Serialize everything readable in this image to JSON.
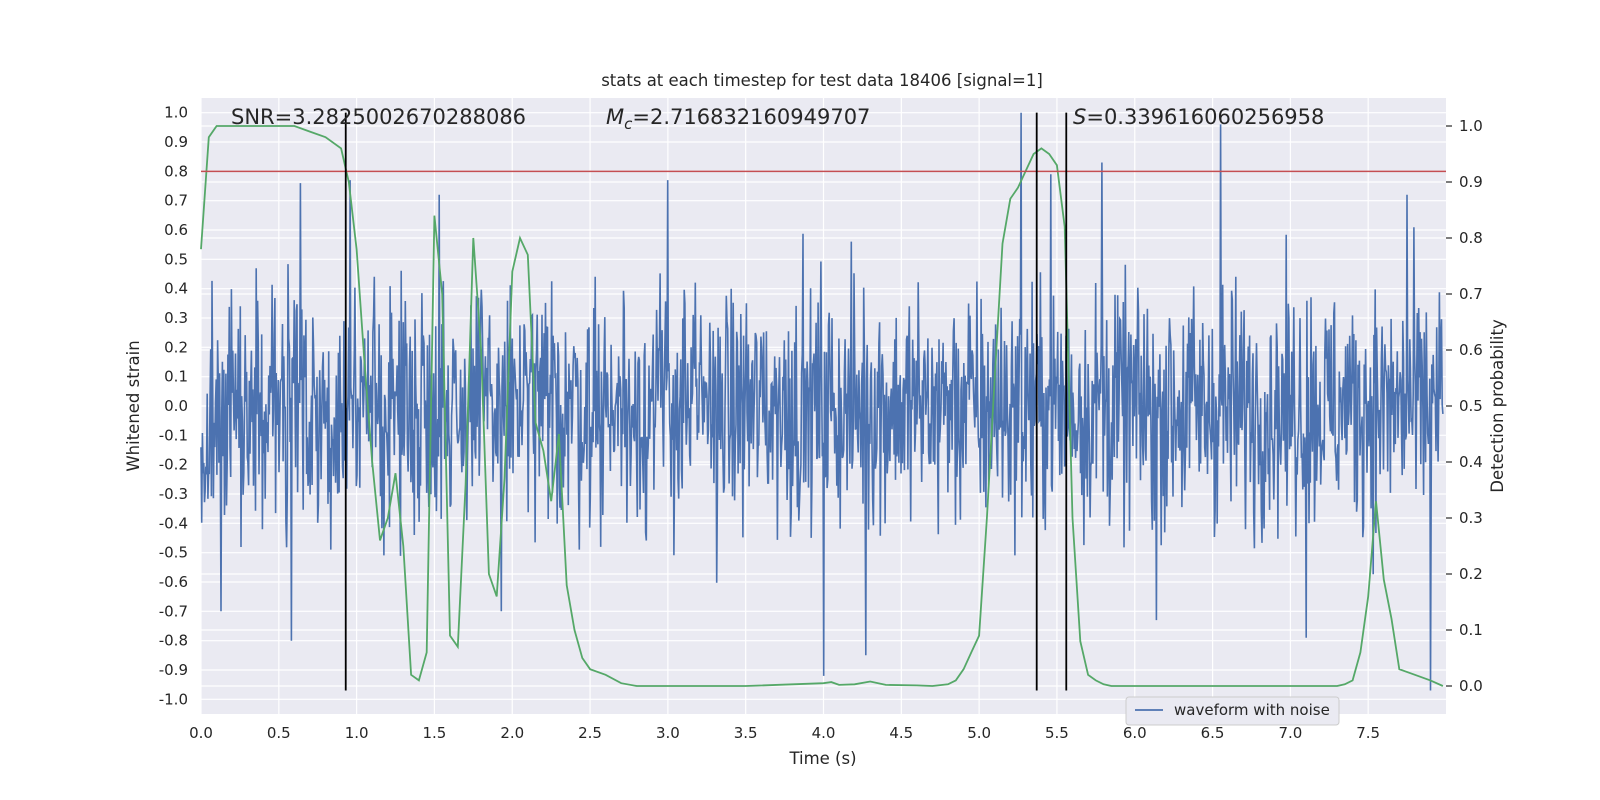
{
  "chart_data": {
    "type": "line",
    "title": "stats at each timestep for test data 18406 [signal=1]",
    "xlabel": "Time (s)",
    "ylabel_left": "Whitened strain",
    "ylabel_right": "Detection probability",
    "xlim": [
      0.0,
      8.0
    ],
    "ylim_left": [
      -1.05,
      1.05
    ],
    "ylim_right": [
      -0.05,
      1.05
    ],
    "x_ticks": [
      "0.0",
      "0.5",
      "1.0",
      "1.5",
      "2.0",
      "2.5",
      "3.0",
      "3.5",
      "4.0",
      "4.5",
      "5.0",
      "5.5",
      "6.0",
      "6.5",
      "7.0",
      "7.5"
    ],
    "y_left_ticks": [
      "1.0",
      "0.9",
      "0.8",
      "0.7",
      "0.6",
      "0.5",
      "0.4",
      "0.3",
      "0.2",
      "0.1",
      "0.0",
      "-0.1",
      "-0.2",
      "-0.3",
      "-0.4",
      "-0.5",
      "-0.6",
      "-0.7",
      "-0.8",
      "-0.9",
      "-1.0"
    ],
    "y_right_ticks": [
      "1.0",
      "0.9",
      "0.8",
      "0.7",
      "0.6",
      "0.5",
      "0.4",
      "0.3",
      "0.2",
      "0.1",
      "0.0"
    ],
    "grid": true,
    "legend": {
      "label": "waveform with noise",
      "placement": "bottom-right"
    },
    "annotations": {
      "snr": "SNR=3.2825002670288086",
      "mc_prefix": "M",
      "mc_sub": "c",
      "mc_value": "=2.716832160949707",
      "s_prefix": "S",
      "s_value": "=0.339616060256958"
    },
    "threshold_line": {
      "y": 0.8,
      "color": "#c44e52"
    },
    "vertical_lines": [
      0.93,
      5.37,
      5.56
    ],
    "strain_series": {
      "name": "waveform with noise",
      "color": "#4c72b0",
      "seed": 18406,
      "t_start": 0.0,
      "t_end": 7.98,
      "samples": 1800,
      "typical_range": [
        -0.4,
        0.4
      ],
      "peaks_positive": [
        [
          0.64,
          0.76
        ],
        [
          0.96,
          0.77
        ],
        [
          1.53,
          0.72
        ],
        [
          3.0,
          0.77
        ],
        [
          5.27,
          1.0
        ],
        [
          5.46,
          0.79
        ],
        [
          5.79,
          0.83
        ],
        [
          6.55,
          0.96
        ],
        [
          7.75,
          0.72
        ]
      ],
      "peaks_negative": [
        [
          0.58,
          -0.8
        ],
        [
          0.13,
          -0.7
        ],
        [
          1.93,
          -0.7
        ],
        [
          4.0,
          -0.92
        ],
        [
          4.27,
          -0.85
        ],
        [
          6.14,
          -0.73
        ],
        [
          7.1,
          -0.79
        ],
        [
          7.9,
          -0.97
        ]
      ]
    },
    "probability_series": {
      "name": "Detection probability",
      "color": "#55a868",
      "x": [
        0.0,
        0.05,
        0.1,
        0.2,
        0.3,
        0.4,
        0.5,
        0.6,
        0.7,
        0.8,
        0.9,
        0.95,
        1.0,
        1.05,
        1.1,
        1.15,
        1.2,
        1.25,
        1.3,
        1.35,
        1.4,
        1.45,
        1.5,
        1.55,
        1.6,
        1.65,
        1.7,
        1.75,
        1.8,
        1.85,
        1.9,
        1.95,
        2.0,
        2.05,
        2.1,
        2.15,
        2.2,
        2.25,
        2.3,
        2.35,
        2.4,
        2.45,
        2.5,
        2.6,
        2.7,
        2.8,
        3.0,
        3.5,
        4.0,
        4.05,
        4.1,
        4.2,
        4.3,
        4.4,
        4.6,
        4.7,
        4.8,
        4.85,
        4.9,
        4.95,
        5.0,
        5.05,
        5.1,
        5.15,
        5.2,
        5.25,
        5.3,
        5.35,
        5.4,
        5.45,
        5.5,
        5.55,
        5.6,
        5.65,
        5.7,
        5.75,
        5.8,
        5.85,
        5.9,
        6.0,
        6.3,
        6.5,
        7.0,
        7.3,
        7.35,
        7.4,
        7.45,
        7.5,
        7.55,
        7.6,
        7.65,
        7.7,
        7.8,
        7.9,
        7.98
      ],
      "y": [
        0.78,
        0.98,
        1.0,
        1.0,
        1.0,
        1.0,
        1.0,
        1.0,
        0.99,
        0.98,
        0.96,
        0.9,
        0.78,
        0.58,
        0.4,
        0.26,
        0.3,
        0.38,
        0.25,
        0.02,
        0.01,
        0.06,
        0.84,
        0.7,
        0.09,
        0.07,
        0.36,
        0.8,
        0.6,
        0.2,
        0.16,
        0.37,
        0.74,
        0.8,
        0.77,
        0.47,
        0.42,
        0.33,
        0.45,
        0.18,
        0.1,
        0.05,
        0.03,
        0.02,
        0.005,
        0.0,
        0.0,
        0.0,
        0.005,
        0.007,
        0.002,
        0.003,
        0.008,
        0.002,
        0.001,
        0.0,
        0.003,
        0.01,
        0.03,
        0.06,
        0.09,
        0.3,
        0.55,
        0.79,
        0.87,
        0.89,
        0.92,
        0.95,
        0.96,
        0.95,
        0.93,
        0.82,
        0.3,
        0.08,
        0.02,
        0.01,
        0.003,
        0.0,
        0.0,
        0.0,
        0.0,
        0.0,
        0.0,
        0.0,
        0.003,
        0.01,
        0.06,
        0.16,
        0.33,
        0.19,
        0.12,
        0.03,
        0.02,
        0.01,
        0.0
      ]
    }
  }
}
